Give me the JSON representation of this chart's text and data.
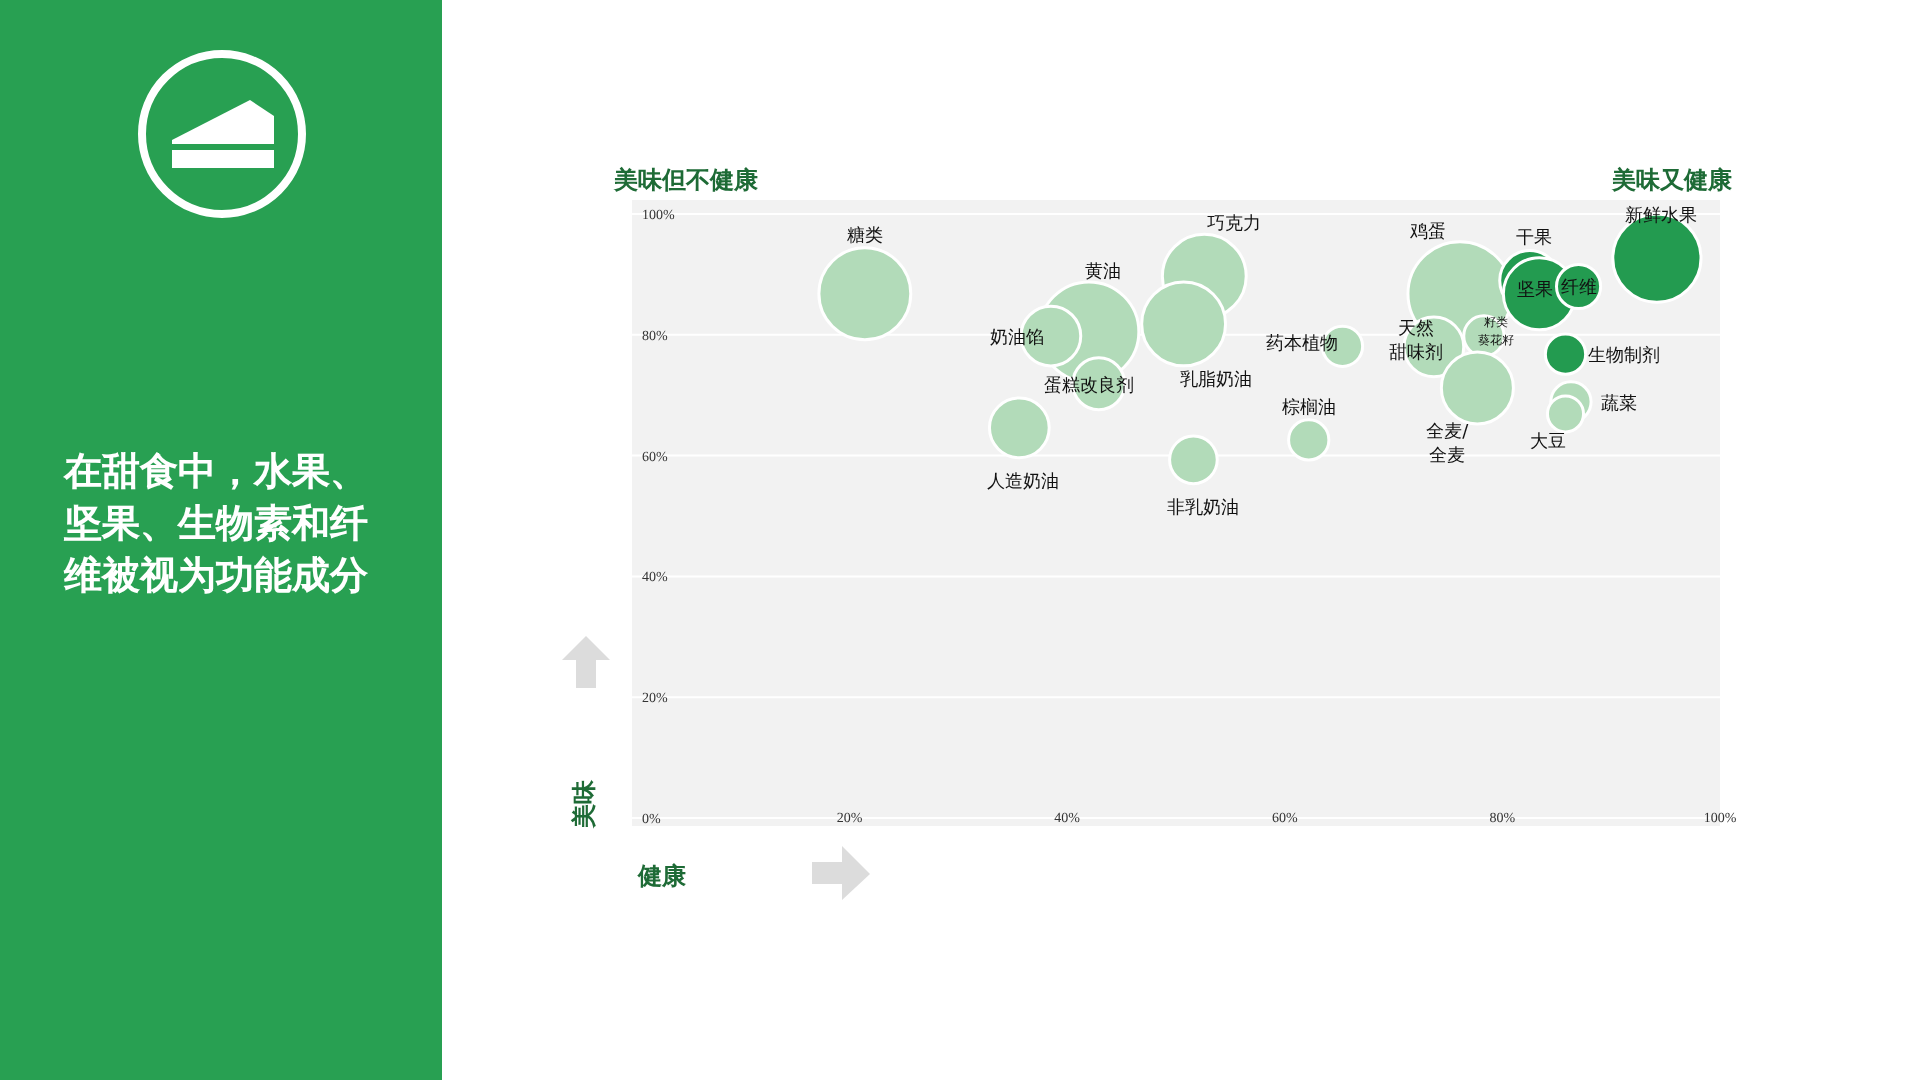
{
  "chart_data": {
    "type": "bubble",
    "title": "在甜食中，水果、坚果、生物素和纤维被视为功能成分",
    "xlabel": "健康",
    "ylabel": "美味",
    "xlim": [
      0,
      100
    ],
    "ylim": [
      0,
      100
    ],
    "xticks": [
      {
        "value": 0,
        "label": null
      },
      {
        "value": 20,
        "label": "20%"
      },
      {
        "value": 40,
        "label": "40%"
      },
      {
        "value": 60,
        "label": "60%"
      },
      {
        "value": 80,
        "label": "80%"
      },
      {
        "value": 100,
        "label": "100%"
      }
    ],
    "yticks": [
      {
        "value": 0,
        "label": "0%"
      },
      {
        "value": 20,
        "label": "20%"
      },
      {
        "value": 40,
        "label": "40%"
      },
      {
        "value": 60,
        "label": "60%"
      },
      {
        "value": 80,
        "label": "80%"
      },
      {
        "value": 100,
        "label": "100%"
      }
    ],
    "grid": "y",
    "x": [
      21.4,
      42,
      38.5,
      42.9,
      35.6,
      52.6,
      50.7,
      51.6,
      65.3,
      62.2,
      76.1,
      73.7,
      78.3,
      77.7,
      82.5,
      83.4,
      87,
      94.2,
      85.8,
      86.3,
      85.8
    ],
    "values": [
      86.8,
      80.5,
      79.8,
      71.9,
      64.6,
      89.7,
      81.8,
      59.3,
      78.1,
      62.6,
      86.8,
      78,
      79.8,
      71.2,
      89,
      86.8,
      88,
      92.7,
      76.8,
      68.9,
      66.9
    ],
    "sizes": [
      0.78,
      0.92,
      0.33,
      0.25,
      0.33,
      0.65,
      0.65,
      0.21,
      0.15,
      0.15,
      1,
      0.33,
      0.15,
      0.48,
      0.33,
      0.48,
      0.18,
      0.72,
      0.15,
      0.15,
      0.12
    ],
    "colors": [
      "#b2dbb9",
      "#b2dbb9",
      "#b2dbb9",
      "#b2dbb9",
      "#b2dbb9",
      "#b2dbb9",
      "#b2dbb9",
      "#b2dbb9",
      "#b2dbb9",
      "#b2dbb9",
      "#b2dbb9",
      "#b2dbb9",
      "#b2dbb9",
      "#b2dbb9",
      "#239b50",
      "#239b50",
      "#239b50",
      "#239b50",
      "#239b50",
      "#b2dbb9",
      "#b2dbb9"
    ],
    "annotations": [
      {
        "text": "糖类",
        "x": 21.4,
        "y": 86.8
      },
      {
        "text": "黄油",
        "x": 42,
        "y": 80.5
      },
      {
        "text": "奶油馅",
        "x": 38.5,
        "y": 79.8
      },
      {
        "text": "蛋糕改良剂",
        "x": 42.9,
        "y": 71.9
      },
      {
        "text": "人造奶油",
        "x": 35.6,
        "y": 64.6
      },
      {
        "text": "巧克力",
        "x": 52.6,
        "y": 89.7
      },
      {
        "text": "乳脂奶油",
        "x": 50.7,
        "y": 81.8
      },
      {
        "text": "非乳奶油",
        "x": 51.6,
        "y": 59.3
      },
      {
        "text": "药本植物",
        "x": 65.3,
        "y": 78.1
      },
      {
        "text": "棕榈油",
        "x": 62.2,
        "y": 62.6
      },
      {
        "text": "鸡蛋",
        "x": 76.1,
        "y": 86.8
      },
      {
        "text": "天然甜味剂",
        "x": 73.7,
        "y": 78
      },
      {
        "text": "籽类葵花籽",
        "x": 78.3,
        "y": 79.8
      },
      {
        "text": "全麦/全麦",
        "x": 77.7,
        "y": 71.2
      },
      {
        "text": "干果",
        "x": 82.5,
        "y": 89
      },
      {
        "text": "坚果",
        "x": 83.4,
        "y": 86.8
      },
      {
        "text": "纤维",
        "x": 87,
        "y": 88
      },
      {
        "text": "新鲜水果",
        "x": 94.2,
        "y": 92.7
      },
      {
        "text": "生物制剂",
        "x": 85.8,
        "y": 76.8
      },
      {
        "text": "蔬菜",
        "x": 86.3,
        "y": 68.9
      },
      {
        "text": "大豆",
        "x": 85.8,
        "y": 66.9
      },
      "美味但不健康",
      "美味又健康"
    ]
  }
}
